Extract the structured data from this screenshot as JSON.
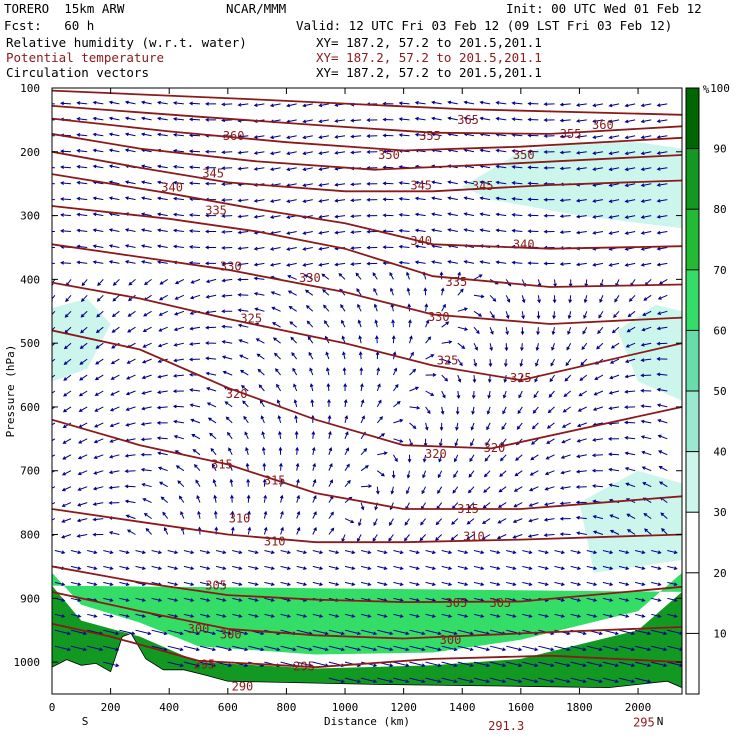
{
  "header": {
    "model": "TORERO  15km ARW",
    "org": "NCAR/MMM",
    "init": "Init: 00 UTC Wed 01 Feb 12",
    "fcst": "Fcst:   60 h",
    "valid": "Valid: 12 UTC Fri 03 Feb 12 (09 LST Fri 03 Feb 12)",
    "field1": "Relative humidity (w.r.t. water)",
    "field2": "Potential temperature",
    "field3": "Circulation vectors",
    "xy1": "XY= 187.2, 57.2 to 201.5,201.1",
    "xy2": "XY= 187.2, 57.2 to 201.5,201.1",
    "xy3": "XY= 187.2, 57.2 to 201.5,201.1"
  },
  "colors": {
    "theta": "#8b1a1a",
    "vectors": "#00008b",
    "rh_levels": [
      "#ffffff",
      "#ffffff",
      "#ffffff",
      "#ccf5ec",
      "#99e8d0",
      "#66ddaa",
      "#33dd66",
      "#22bb33",
      "#119922",
      "#006600"
    ]
  },
  "chart_data": {
    "type": "cross-section",
    "title": "Relative humidity (w.r.t. water) / Potential temperature / Circulation vectors",
    "xlabel": "Distance (km)",
    "ylabel": "Pressure (hPa)",
    "xlim": [
      0,
      2150
    ],
    "ylim": [
      1050,
      100
    ],
    "x_ticks": [
      "0",
      "200",
      "400",
      "600",
      "800",
      "1000",
      "1200",
      "1400",
      "1600",
      "1800",
      "2000"
    ],
    "y_ticks": [
      "100",
      "200",
      "300",
      "400",
      "500",
      "600",
      "700",
      "800",
      "900",
      "1000"
    ],
    "x_end_labels": {
      "left": "S",
      "right": "N"
    },
    "colorbar": {
      "unit": "%",
      "ticks": [
        "10",
        "20",
        "30",
        "40",
        "50",
        "60",
        "70",
        "80",
        "90",
        "100"
      ]
    },
    "theta_labels": [
      {
        "text": "365",
        "x": 1420,
        "p": 150
      },
      {
        "text": "360",
        "x": 620,
        "p": 175
      },
      {
        "text": "360",
        "x": 1880,
        "p": 158
      },
      {
        "text": "355",
        "x": 1290,
        "p": 175
      },
      {
        "text": "355",
        "x": 1770,
        "p": 172
      },
      {
        "text": "350",
        "x": 1150,
        "p": 205
      },
      {
        "text": "350",
        "x": 1610,
        "p": 205
      },
      {
        "text": "345",
        "x": 550,
        "p": 234
      },
      {
        "text": "345",
        "x": 1260,
        "p": 253
      },
      {
        "text": "345",
        "x": 1470,
        "p": 254
      },
      {
        "text": "340",
        "x": 410,
        "p": 256
      },
      {
        "text": "340",
        "x": 1260,
        "p": 340
      },
      {
        "text": "340",
        "x": 1610,
        "p": 345
      },
      {
        "text": "335",
        "x": 560,
        "p": 292
      },
      {
        "text": "335",
        "x": 1380,
        "p": 404
      },
      {
        "text": "330",
        "x": 610,
        "p": 380
      },
      {
        "text": "330",
        "x": 880,
        "p": 398
      },
      {
        "text": "330",
        "x": 1320,
        "p": 459
      },
      {
        "text": "325",
        "x": 680,
        "p": 461
      },
      {
        "text": "325",
        "x": 1350,
        "p": 527
      },
      {
        "text": "325",
        "x": 1600,
        "p": 555
      },
      {
        "text": "320",
        "x": 630,
        "p": 580
      },
      {
        "text": "320",
        "x": 1310,
        "p": 674
      },
      {
        "text": "320",
        "x": 1510,
        "p": 664
      },
      {
        "text": "315",
        "x": 580,
        "p": 690
      },
      {
        "text": "315",
        "x": 760,
        "p": 715
      },
      {
        "text": "315",
        "x": 1420,
        "p": 760
      },
      {
        "text": "310",
        "x": 640,
        "p": 775
      },
      {
        "text": "310",
        "x": 760,
        "p": 811
      },
      {
        "text": "310",
        "x": 1440,
        "p": 803
      },
      {
        "text": "305",
        "x": 560,
        "p": 880
      },
      {
        "text": "305",
        "x": 1380,
        "p": 907
      },
      {
        "text": "305",
        "x": 1530,
        "p": 907
      },
      {
        "text": "300",
        "x": 500,
        "p": 948
      },
      {
        "text": "300",
        "x": 610,
        "p": 957
      },
      {
        "text": "300",
        "x": 1360,
        "p": 965
      },
      {
        "text": "295",
        "x": 520,
        "p": 1004
      },
      {
        "text": "295",
        "x": 860,
        "p": 1007
      },
      {
        "text": "295",
        "x": 2020,
        "p": 1095
      },
      {
        "text": "290",
        "x": 650,
        "p": 1038
      },
      {
        "text": "291.3",
        "x": 1550,
        "p": 1100
      }
    ],
    "theta_isolines": [
      {
        "value": 365,
        "x": [
          0,
          700,
          1400,
          2150
        ],
        "p": [
          104,
          118,
          133,
          142
        ]
      },
      {
        "value": 360,
        "x": [
          0,
          500,
          900,
          1300,
          1700,
          2150
        ],
        "p": [
          128,
          145,
          158,
          170,
          172,
          160
        ]
      },
      {
        "value": 355,
        "x": [
          0,
          400,
          800,
          1200,
          1600,
          2150
        ],
        "p": [
          148,
          168,
          185,
          198,
          192,
          178
        ]
      },
      {
        "value": 350,
        "x": [
          0,
          300,
          700,
          1100,
          1500,
          2150
        ],
        "p": [
          172,
          195,
          215,
          228,
          220,
          205
        ]
      },
      {
        "value": 345,
        "x": [
          0,
          300,
          600,
          1000,
          1300,
          1700,
          2150
        ],
        "p": [
          200,
          225,
          248,
          262,
          262,
          252,
          245
        ]
      },
      {
        "value": 340,
        "x": [
          0,
          400,
          700,
          1000,
          1300,
          1700,
          2150
        ],
        "p": [
          235,
          265,
          290,
          312,
          345,
          352,
          348
        ]
      },
      {
        "value": 335,
        "x": [
          0,
          400,
          700,
          1000,
          1300,
          1700,
          2150
        ],
        "p": [
          285,
          305,
          325,
          352,
          395,
          412,
          408
        ]
      },
      {
        "value": 330,
        "x": [
          0,
          300,
          600,
          1000,
          1300,
          1700,
          2150
        ],
        "p": [
          345,
          365,
          385,
          420,
          455,
          470,
          460
        ]
      },
      {
        "value": 325,
        "x": [
          0,
          300,
          600,
          1000,
          1300,
          1600,
          2150
        ],
        "p": [
          405,
          430,
          462,
          500,
          535,
          558,
          500
        ]
      },
      {
        "value": 320,
        "x": [
          0,
          300,
          600,
          900,
          1200,
          1500,
          2150
        ],
        "p": [
          480,
          510,
          570,
          620,
          660,
          665,
          600
        ]
      },
      {
        "value": 315,
        "x": [
          0,
          300,
          600,
          900,
          1200,
          1600,
          2150
        ],
        "p": [
          620,
          660,
          690,
          735,
          760,
          760,
          740
        ]
      },
      {
        "value": 310,
        "x": [
          0,
          300,
          600,
          900,
          1200,
          1600,
          2150
        ],
        "p": [
          760,
          780,
          800,
          812,
          812,
          808,
          800
        ]
      },
      {
        "value": 305,
        "x": [
          0,
          300,
          600,
          900,
          1200,
          1600,
          2150
        ],
        "p": [
          850,
          875,
          895,
          902,
          906,
          905,
          882
        ]
      },
      {
        "value": 300,
        "x": [
          0,
          300,
          600,
          900,
          1200,
          1600,
          2150
        ],
        "p": [
          890,
          920,
          948,
          958,
          963,
          955,
          945
        ]
      },
      {
        "value": 295,
        "x": [
          0,
          200,
          500,
          900,
          1300,
          1700,
          2150
        ],
        "p": [
          940,
          960,
          998,
          1008,
          995,
          990,
          1000
        ]
      }
    ],
    "rh_regions": [
      {
        "level": 90,
        "x": [
          0,
          100,
          300,
          500,
          900,
          1300,
          1600,
          2000,
          2150,
          2150,
          0
        ],
        "p": [
          880,
          935,
          960,
          1000,
          1010,
          1005,
          995,
          950,
          890,
          1050,
          1050
        ]
      },
      {
        "level": 70,
        "x": [
          0,
          100,
          300,
          500,
          900,
          1300,
          1600,
          2000,
          2150,
          2150,
          0
        ],
        "p": [
          860,
          910,
          938,
          975,
          988,
          985,
          965,
          920,
          860,
          890,
          880
        ]
      },
      {
        "level": 40,
        "x": [
          1400,
          1600,
          1800,
          2000,
          2150,
          2150,
          1800,
          1500
        ],
        "p": [
          255,
          200,
          185,
          185,
          195,
          320,
          300,
          275
        ]
      },
      {
        "level": 40,
        "x": [
          0,
          120,
          200,
          120,
          0
        ],
        "p": [
          445,
          430,
          470,
          540,
          560
        ]
      },
      {
        "level": 40,
        "x": [
          1930,
          2060,
          2150,
          2150,
          2000
        ],
        "p": [
          480,
          440,
          450,
          590,
          560
        ]
      },
      {
        "level": 40,
        "x": [
          1800,
          2000,
          2150,
          2150,
          1850
        ],
        "p": [
          750,
          700,
          720,
          840,
          860
        ]
      }
    ],
    "terrain": {
      "x": [
        0,
        50,
        100,
        150,
        200,
        240,
        270,
        320,
        380,
        450,
        520,
        600,
        1100,
        1600,
        1900,
        2100,
        2150
      ],
      "p": [
        1008,
        996,
        1005,
        1002,
        1015,
        960,
        955,
        995,
        1012,
        1012,
        1020,
        1030,
        1035,
        1038,
        1040,
        1030,
        1040
      ]
    }
  }
}
